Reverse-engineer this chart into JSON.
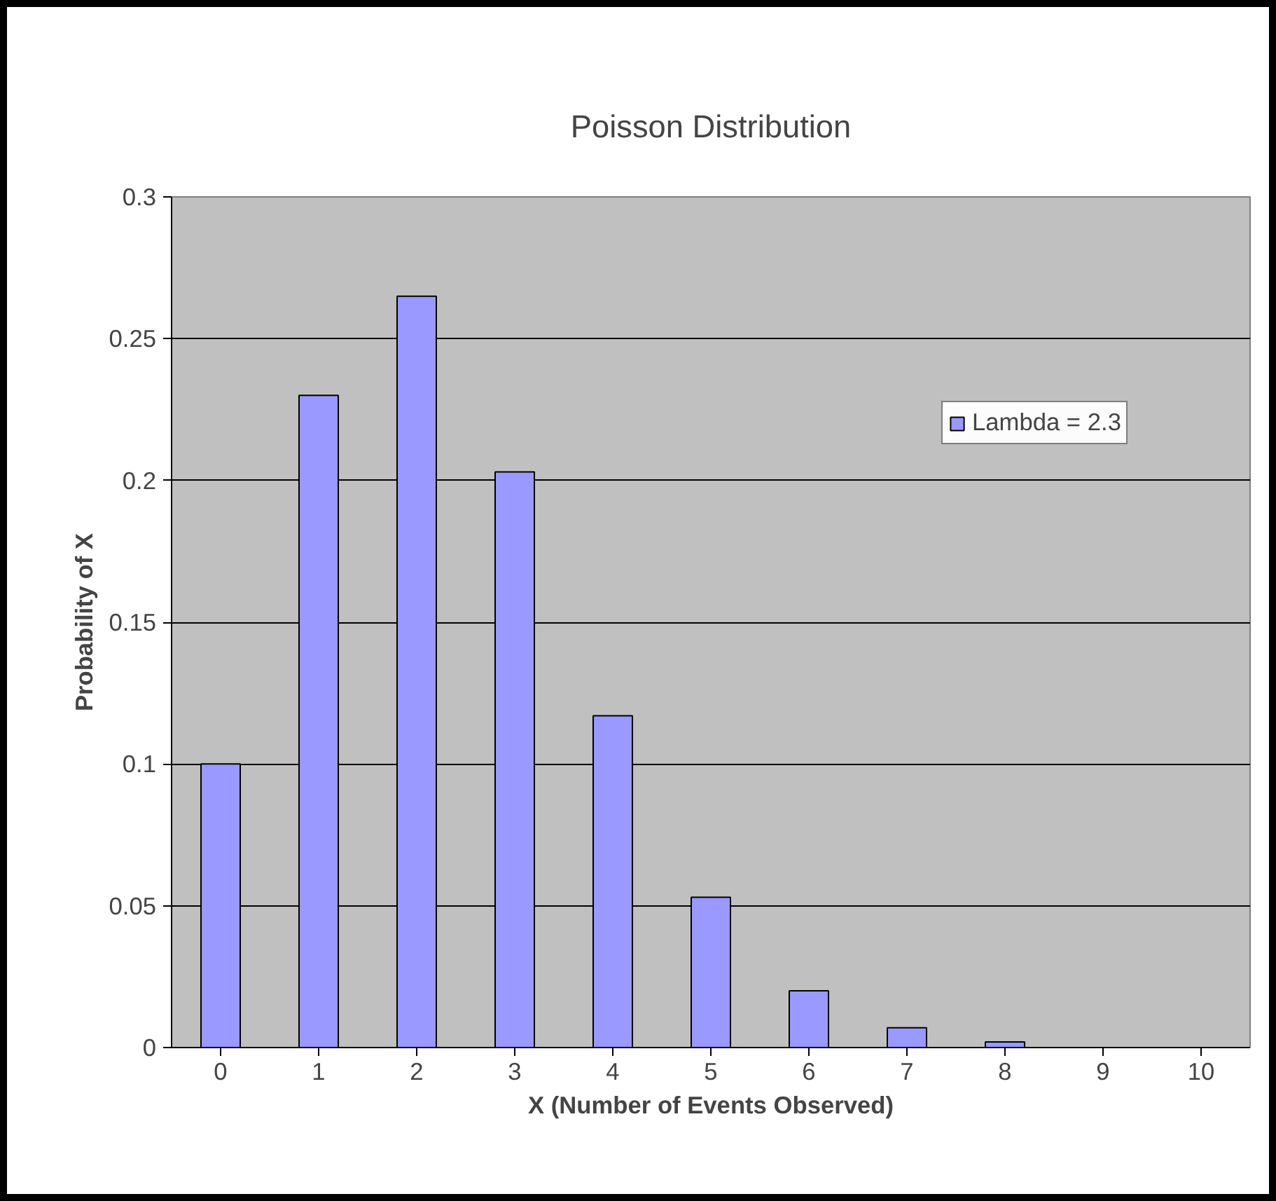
{
  "chart_data": {
    "type": "bar",
    "title": "Poisson Distribution",
    "xlabel": "X (Number of Events Observed)",
    "ylabel": "Probability of X",
    "categories": [
      "0",
      "1",
      "2",
      "3",
      "4",
      "5",
      "6",
      "7",
      "8",
      "9",
      "10"
    ],
    "series": [
      {
        "name": "Lambda = 2.3",
        "color": "#9999ff",
        "values": [
          0.1,
          0.23,
          0.265,
          0.203,
          0.117,
          0.053,
          0.02,
          0.007,
          0.002,
          null,
          null
        ]
      }
    ],
    "ylim": [
      0,
      0.3
    ],
    "yticks": [
      0,
      0.05,
      0.1,
      0.15,
      0.2,
      0.25,
      0.3
    ],
    "grid": "y",
    "legend": "right"
  }
}
